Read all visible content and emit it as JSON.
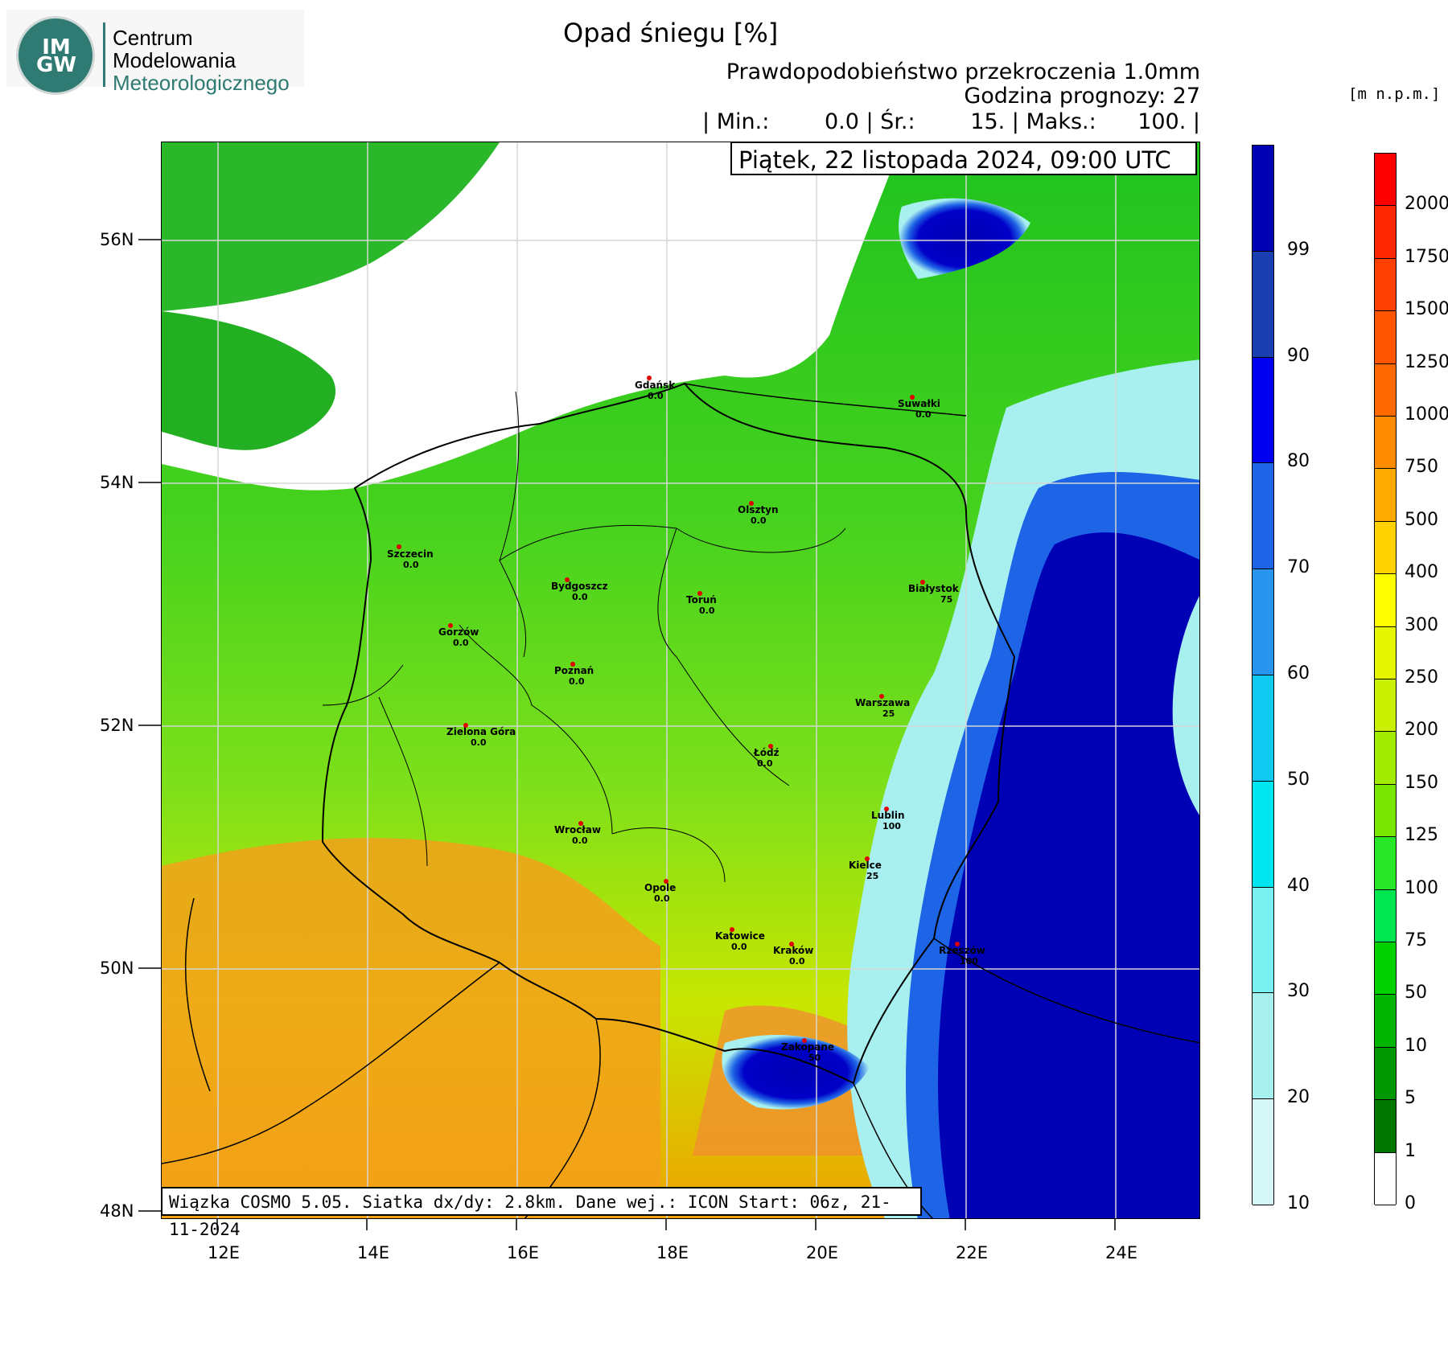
{
  "logo": {
    "mark": "IM GW",
    "line1": "Centrum",
    "line2": "Modelowania",
    "line3": "Meteorologicznego"
  },
  "header": {
    "title": "Opad śniegu [%]",
    "subtitle1": "Prawdopodobieństwo przekroczenia 1.0mm",
    "subtitle2": "Godzina prognozy: 27",
    "stats": "| Min.:        0.0 | Śr.:        15. | Maks.:      100. |",
    "date": "Piątek, 22 listopada 2024, 09:00 UTC"
  },
  "footer": "Wiązka COSMO 5.05. Siatka dx/dy: 2.8km. Dane wej.: ICON Start: 06z, 21-11-2024",
  "axes": {
    "lat_labels": [
      "56N",
      "54N",
      "52N",
      "50N",
      "48N"
    ],
    "lon_labels": [
      "12E",
      "14E",
      "16E",
      "18E",
      "20E",
      "22E",
      "24E"
    ]
  },
  "prob_colorbar": {
    "labels": [
      "99",
      "90",
      "80",
      "70",
      "60",
      "50",
      "40",
      "30",
      "20",
      "10"
    ],
    "colors": [
      "#0000b4",
      "#1a3fb0",
      "#0000f0",
      "#1e64e6",
      "#2896f0",
      "#10c8f0",
      "#00e6f0",
      "#78f0f0",
      "#a8f0f0",
      "#d4f6f6"
    ]
  },
  "elev_colorbar": {
    "unit": "[m n.p.m.]",
    "labels": [
      "2000",
      "1750",
      "1500",
      "1250",
      "1000",
      "750",
      "500",
      "400",
      "300",
      "250",
      "200",
      "150",
      "125",
      "100",
      "75",
      "50",
      "10",
      "5",
      "1",
      "0"
    ],
    "colors": [
      "#ff0000",
      "#ff2800",
      "#ff4000",
      "#ff5500",
      "#ff6a00",
      "#ff8c00",
      "#ffaa00",
      "#ffd200",
      "#ffff00",
      "#e6f500",
      "#c8f000",
      "#a0eb00",
      "#78e600",
      "#28e628",
      "#00e650",
      "#00d200",
      "#00b400",
      "#009600",
      "#007800",
      "#ffffff"
    ]
  },
  "cities": [
    {
      "name": "Gdańsk",
      "value": "0.0"
    },
    {
      "name": "Suwałki",
      "value": "0.0"
    },
    {
      "name": "Olsztyn",
      "value": "0.0"
    },
    {
      "name": "Szczecin",
      "value": "0.0"
    },
    {
      "name": "Bydgoszcz",
      "value": "0.0"
    },
    {
      "name": "Toruń",
      "value": "0.0"
    },
    {
      "name": "Białystok",
      "value": "75"
    },
    {
      "name": "Gorzów",
      "value": "0.0"
    },
    {
      "name": "Poznań",
      "value": "0.0"
    },
    {
      "name": "Warszawa",
      "value": "25"
    },
    {
      "name": "Zielona Góra",
      "value": "0.0"
    },
    {
      "name": "Łódź",
      "value": "0.0"
    },
    {
      "name": "Lublin",
      "value": "100"
    },
    {
      "name": "Wrocław",
      "value": "0.0"
    },
    {
      "name": "Kielce",
      "value": "25"
    },
    {
      "name": "Opole",
      "value": "0.0"
    },
    {
      "name": "Katowice",
      "value": "0.0"
    },
    {
      "name": "Kraków",
      "value": "0.0"
    },
    {
      "name": "Rzeszów",
      "value": "100"
    },
    {
      "name": "Zakopane",
      "value": "50"
    }
  ]
}
